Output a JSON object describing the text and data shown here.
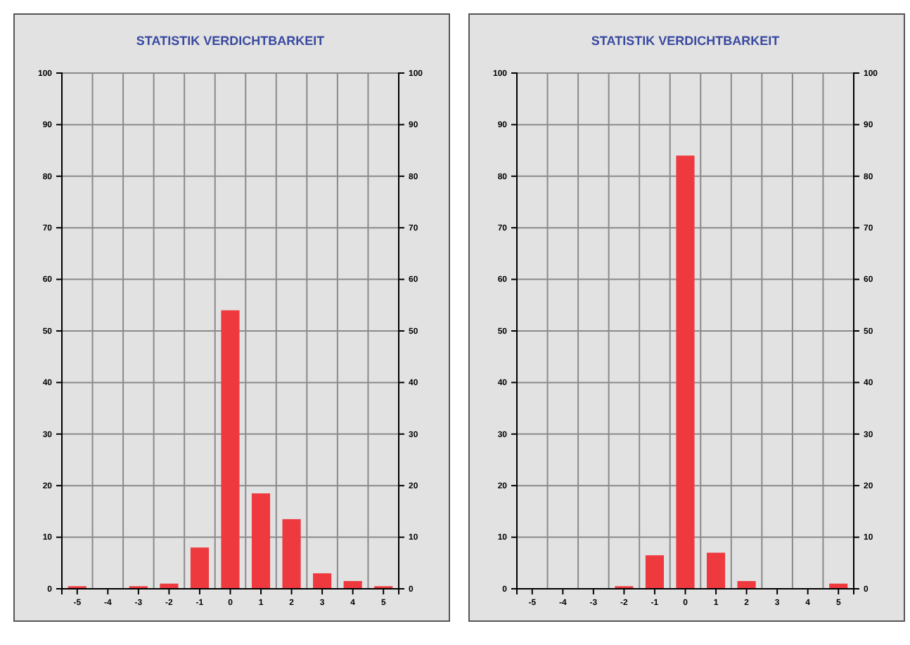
{
  "chart_data": [
    {
      "type": "bar",
      "title": "STATISTIK VERDICHTBARKEIT",
      "categories": [
        "-5",
        "-4",
        "-3",
        "-2",
        "-1",
        "0",
        "1",
        "2",
        "3",
        "4",
        "5"
      ],
      "values": [
        0.5,
        0,
        0.5,
        1,
        8,
        54,
        18.5,
        13.5,
        3,
        1.5,
        0.5
      ],
      "color": "#ee3a3e",
      "ylim": [
        0,
        100
      ],
      "yticks": [
        0,
        10,
        20,
        30,
        40,
        50,
        60,
        70,
        80,
        90,
        100
      ],
      "y2lim": [
        0,
        100
      ],
      "y2ticks": [
        0,
        10,
        20,
        30,
        40,
        50,
        60,
        70,
        80,
        90,
        100
      ],
      "grid": true
    },
    {
      "type": "bar",
      "title": "STATISTIK VERDICHTBARKEIT",
      "categories": [
        "-5",
        "-4",
        "-3",
        "-2",
        "-1",
        "0",
        "1",
        "2",
        "3",
        "4",
        "5"
      ],
      "values": [
        0,
        0,
        0,
        0.5,
        6.5,
        84,
        7,
        1.5,
        0,
        0,
        1
      ],
      "color": "#ee3a3e",
      "ylim": [
        0,
        100
      ],
      "yticks": [
        0,
        10,
        20,
        30,
        40,
        50,
        60,
        70,
        80,
        90,
        100
      ],
      "y2lim": [
        0,
        100
      ],
      "y2ticks": [
        0,
        10,
        20,
        30,
        40,
        50,
        60,
        70,
        80,
        90,
        100
      ],
      "grid": true
    }
  ]
}
